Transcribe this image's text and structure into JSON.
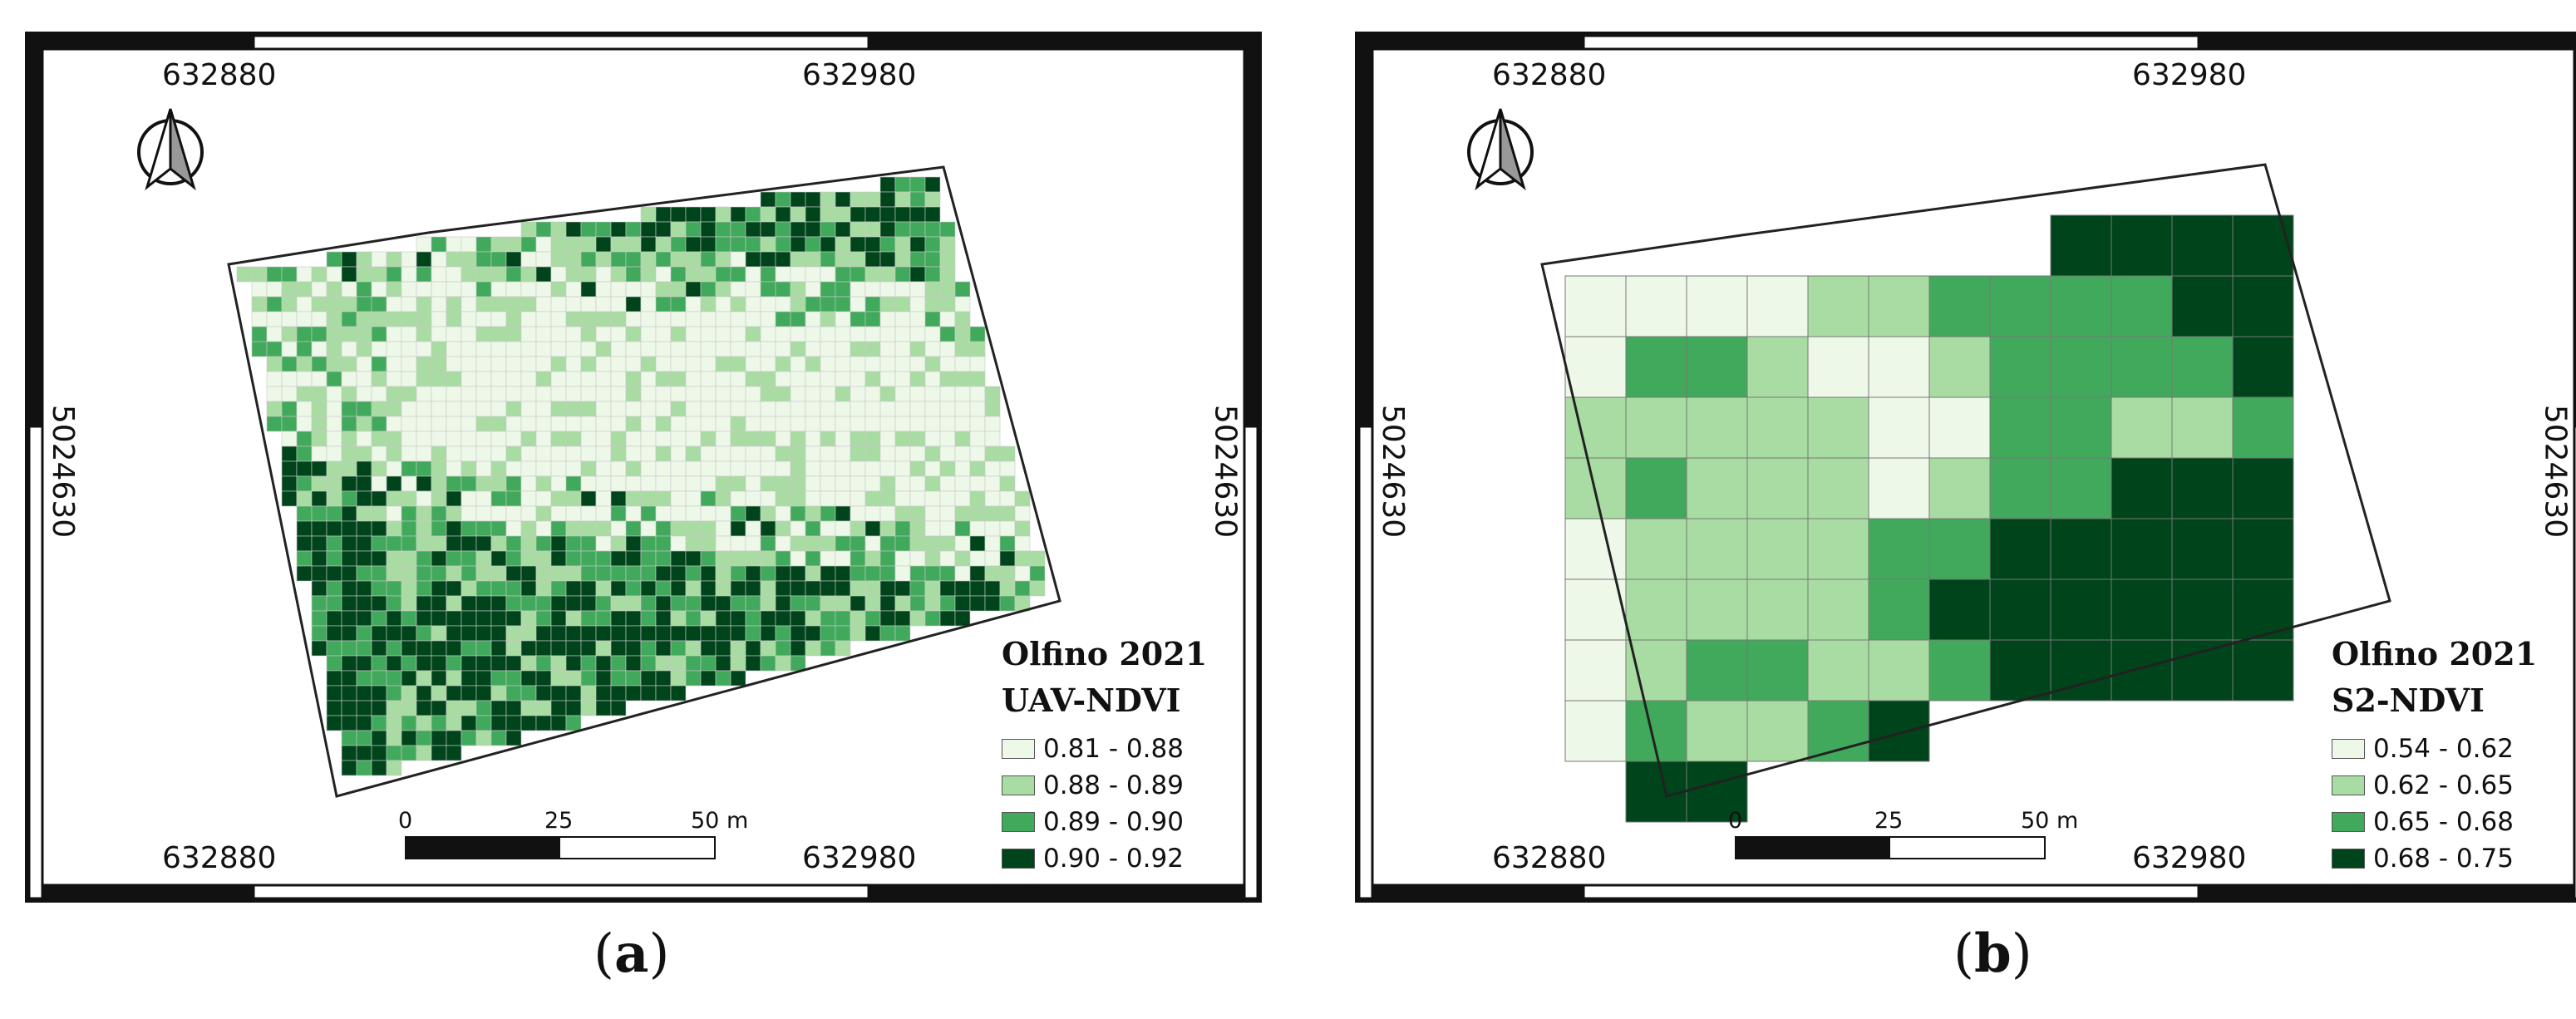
{
  "panels": [
    {
      "id": "a",
      "label": "a",
      "coords": {
        "top_left": "632880",
        "top_right": "632980",
        "bottom_left": "632880",
        "bottom_right": "632980",
        "left": "5024630",
        "right": "5024630"
      },
      "legend": {
        "title_line1": "Olfino 2021",
        "title_line2": "UAV-NDVI",
        "items": [
          {
            "label": "0.81 - 0.88",
            "color": "#edf8e9"
          },
          {
            "label": "0.88 - 0.89",
            "color": "#a9dca2"
          },
          {
            "label": "0.89 - 0.90",
            "color": "#41a95b"
          },
          {
            "label": "0.90 - 0.92",
            "color": "#00441b"
          }
        ]
      },
      "scalebar": {
        "tick0": "0",
        "tick1": "25",
        "tick2": "50 m"
      }
    },
    {
      "id": "b",
      "label": "b",
      "coords": {
        "top_left": "632880",
        "top_right": "632980",
        "bottom_left": "632880",
        "bottom_right": "632980",
        "left": "5024630",
        "right": "5024630"
      },
      "legend": {
        "title_line1": "Olfino 2021",
        "title_line2": "S2-NDVI",
        "items": [
          {
            "label": "0.54 - 0.62",
            "color": "#edf8e9"
          },
          {
            "label": "0.62 - 0.65",
            "color": "#a9dca2"
          },
          {
            "label": "0.65 - 0.68",
            "color": "#41a95b"
          },
          {
            "label": "0.68 - 0.75",
            "color": "#00441b"
          }
        ]
      },
      "scalebar": {
        "tick0": "0",
        "tick1": "25",
        "tick2": "50 m"
      }
    }
  ]
}
